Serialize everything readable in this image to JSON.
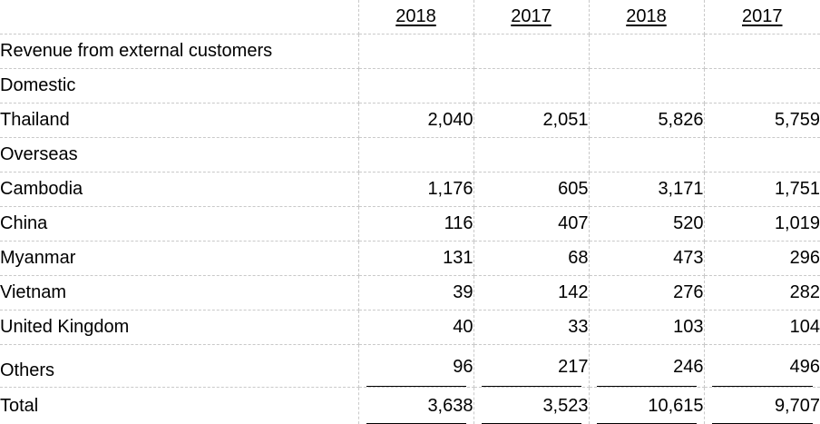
{
  "columns": [
    "2018",
    "2017",
    "2018",
    "2017"
  ],
  "rows": [
    {
      "label": "Revenue from external customers",
      "values": [
        "",
        "",
        "",
        ""
      ]
    },
    {
      "label": "Domestic",
      "values": [
        "",
        "",
        "",
        ""
      ]
    },
    {
      "label": "Thailand",
      "values": [
        "2,040",
        "2,051",
        "5,826",
        "5,759"
      ]
    },
    {
      "label": "Overseas",
      "values": [
        "",
        "",
        "",
        ""
      ]
    },
    {
      "label": "Cambodia",
      "values": [
        "1,176",
        "605",
        "3,171",
        "1,751"
      ]
    },
    {
      "label": "China",
      "values": [
        "116",
        "407",
        "520",
        "1,019"
      ]
    },
    {
      "label": "Myanmar",
      "values": [
        "131",
        "68",
        "473",
        "296"
      ]
    },
    {
      "label": "Vietnam",
      "values": [
        "39",
        "142",
        "276",
        "282"
      ]
    },
    {
      "label": "United Kingdom",
      "values": [
        "40",
        "33",
        "103",
        "104"
      ]
    },
    {
      "label": "Others",
      "values": [
        "96",
        "217",
        "246",
        "496"
      ]
    }
  ],
  "total": {
    "label": "Total",
    "values": [
      "3,638",
      "3,523",
      "10,615",
      "9,707"
    ]
  }
}
